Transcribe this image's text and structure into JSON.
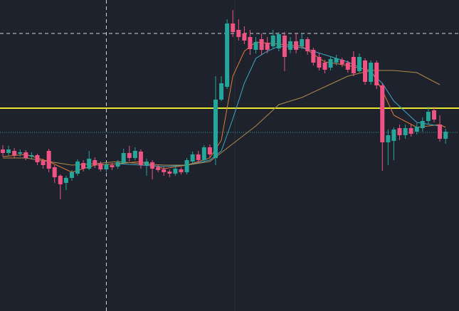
{
  "chart_data": {
    "type": "candlestick",
    "ylim": [
      0,
      437
    ],
    "up_color": "#26a69a",
    "down_color": "#ef5383",
    "open": [
      227,
      222,
      225,
      221,
      223,
      217,
      219,
      211,
      225,
      202,
      190,
      180,
      187,
      193,
      208,
      200,
      212,
      207,
      199,
      205,
      203,
      208,
      222,
      215,
      224,
      205,
      209,
      202,
      199,
      196,
      193,
      199,
      195,
      210,
      220,
      212,
      230,
      215,
      297,
      315,
      404,
      395,
      390,
      385,
      367,
      382,
      377,
      372,
      369,
      387,
      367,
      379,
      372,
      382,
      367,
      357,
      349,
      342,
      349,
      353,
      349,
      357,
      337,
      352,
      322,
      349,
      317,
      237,
      239,
      257,
      247,
      257,
      252,
      257,
      267,
      282,
      262,
      242
    ],
    "high": [
      233,
      232,
      229,
      227,
      226,
      223,
      221,
      214,
      228,
      205,
      192,
      190,
      198,
      213,
      212,
      225,
      216,
      210,
      209,
      208,
      212,
      228,
      232,
      230,
      227,
      214,
      212,
      206,
      203,
      199,
      205,
      202,
      215,
      224,
      225,
      233,
      234,
      330,
      330,
      410,
      423,
      410,
      400,
      395,
      385,
      390,
      385,
      395,
      392,
      392,
      385,
      390,
      390,
      385,
      370,
      362,
      353,
      358,
      360,
      356,
      352,
      365,
      362,
      355,
      352,
      352,
      320,
      255,
      258,
      262,
      262,
      262,
      264,
      272,
      287,
      287,
      275,
      256
    ],
    "low": [
      217,
      218,
      215,
      217,
      212,
      213,
      205,
      200,
      195,
      180,
      157,
      170,
      183,
      190,
      196,
      198,
      201,
      196,
      195,
      198,
      200,
      206,
      210,
      212,
      200,
      190,
      185,
      195,
      190,
      188,
      190,
      192,
      192,
      207,
      208,
      208,
      215,
      205,
      295,
      312,
      385,
      380,
      375,
      360,
      362,
      360,
      362,
      368,
      365,
      337,
      362,
      362,
      368,
      360,
      345,
      338,
      334,
      338,
      345,
      343,
      335,
      330,
      335,
      318,
      318,
      312,
      197,
      205,
      212,
      240,
      242,
      245,
      248,
      252,
      262,
      265,
      238,
      235
    ],
    "close": [
      222,
      227,
      219,
      223,
      215,
      219,
      209,
      205,
      200,
      188,
      178,
      187,
      195,
      210,
      200,
      214,
      205,
      199,
      206,
      202,
      209,
      222,
      215,
      225,
      205,
      210,
      200,
      198,
      195,
      193,
      200,
      195,
      212,
      220,
      212,
      230,
      220,
      297,
      320,
      404,
      392,
      385,
      380,
      368,
      378,
      367,
      367,
      387,
      389,
      357,
      379,
      367,
      382,
      365,
      349,
      342,
      339,
      354,
      355,
      347,
      339,
      334,
      357,
      322,
      349,
      317,
      237,
      247,
      255,
      247,
      257,
      249,
      259,
      267,
      280,
      269,
      242,
      252
    ],
    "series": [
      {
        "color": "#e0793a",
        "x": [
          0,
          4,
          8,
          12,
          16,
          20,
          24,
          28,
          32,
          36,
          38,
          40,
          42,
          44,
          48,
          52,
          56,
          60,
          64,
          66,
          68,
          72,
          76,
          77
        ],
        "values": [
          217,
          220,
          210,
          195,
          205,
          207,
          210,
          200,
          205,
          215,
          240,
          330,
          365,
          378,
          375,
          372,
          350,
          345,
          338,
          310,
          275,
          258,
          262,
          258
        ]
      },
      {
        "color": "#3fa7c4",
        "x": [
          20,
          24,
          28,
          32,
          36,
          38,
          40,
          42,
          44,
          46,
          48,
          52,
          56,
          60,
          64,
          66,
          68,
          72,
          76
        ],
        "values": [
          207,
          205,
          203,
          205,
          212,
          225,
          270,
          320,
          355,
          365,
          372,
          370,
          360,
          350,
          335,
          320,
          295,
          265,
          260
        ]
      },
      {
        "color": "#b08a4a",
        "x": [
          0,
          4,
          8,
          12,
          16,
          20,
          24,
          28,
          32,
          36,
          40,
          44,
          48,
          52,
          56,
          60,
          64,
          68,
          72,
          76
        ],
        "values": [
          215,
          215,
          210,
          205,
          207,
          210,
          207,
          205,
          205,
          210,
          235,
          260,
          290,
          300,
          315,
          330,
          338,
          338,
          335,
          318
        ]
      }
    ],
    "levels": [
      {
        "value": 285,
        "color": "#e6e62e",
        "style": "solid"
      },
      {
        "value": 251,
        "color": "#26a69a",
        "style": "dotted"
      }
    ],
    "crosshair": {
      "index": 18,
      "value": 390,
      "color": "#d1d4dc"
    }
  }
}
